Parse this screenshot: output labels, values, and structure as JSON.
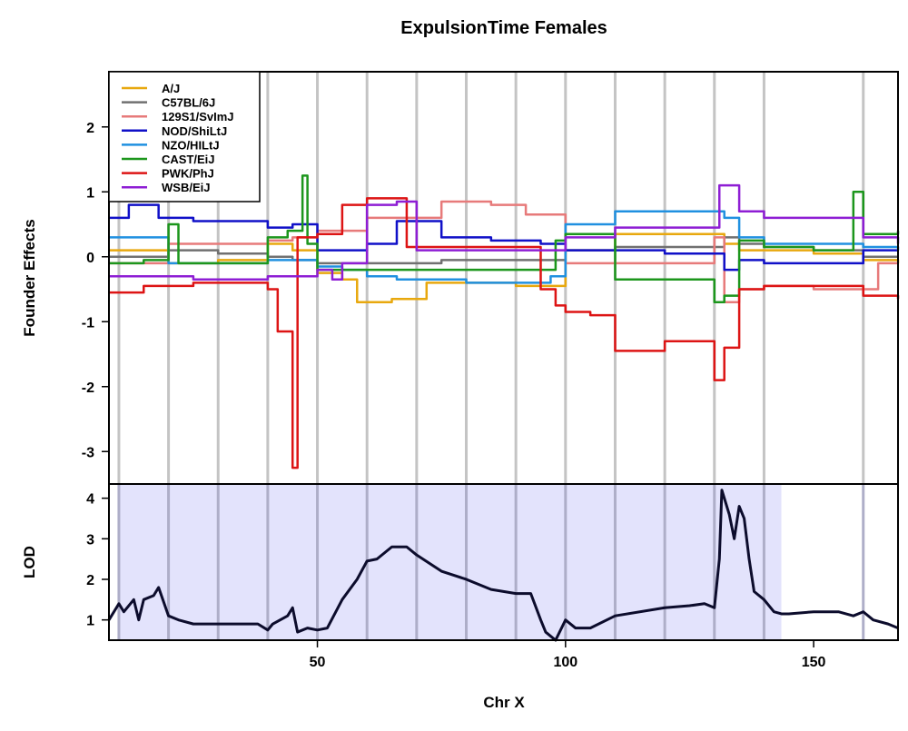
{
  "chart_data": {
    "type": "line",
    "title": "ExpulsionTime Females",
    "xlabel": "Chr X",
    "x_ticks": [
      50,
      100,
      150
    ],
    "xlim": [
      8,
      167
    ],
    "founder_panel": {
      "ylabel": "Founder Effects",
      "ylim": [
        -3.5,
        2.85
      ],
      "y_ticks": [
        -3,
        -2,
        -1,
        0,
        1,
        2
      ],
      "legend_position": "top-left",
      "series": [
        {
          "name": "A/J",
          "color": "#e8a80e",
          "x": [
            8,
            20,
            30,
            40,
            45,
            50,
            55,
            58,
            65,
            72,
            80,
            90,
            98,
            100,
            110,
            120,
            128,
            132,
            135,
            140,
            150,
            160,
            167
          ],
          "y": [
            0.1,
            -0.1,
            -0.05,
            0.2,
            0.1,
            -0.25,
            -0.35,
            -0.7,
            -0.65,
            -0.4,
            -0.4,
            -0.45,
            -0.45,
            0.1,
            0.35,
            0.35,
            0.35,
            0.2,
            0.1,
            0.1,
            0.05,
            -0.05,
            -0.1
          ]
        },
        {
          "name": "C57BL/6J",
          "color": "#707070",
          "x": [
            8,
            20,
            30,
            40,
            45,
            50,
            55,
            60,
            68,
            75,
            85,
            95,
            100,
            110,
            120,
            128,
            132,
            135,
            140,
            150,
            160,
            167
          ],
          "y": [
            0,
            0.1,
            0.05,
            0,
            -0.05,
            -0.1,
            -0.1,
            -0.1,
            -0.1,
            -0.05,
            -0.05,
            -0.05,
            0.1,
            0.15,
            0.15,
            0.15,
            0.3,
            0.2,
            0.15,
            0.1,
            0,
            0
          ]
        },
        {
          "name": "129S1/SvImJ",
          "color": "#e77a7a",
          "x": [
            8,
            20,
            30,
            40,
            45,
            50,
            55,
            60,
            66,
            75,
            85,
            92,
            100,
            110,
            120,
            128,
            130,
            132,
            135,
            140,
            150,
            160,
            163,
            167
          ],
          "y": [
            -0.1,
            0.2,
            0.2,
            0.25,
            0.3,
            0.4,
            0.4,
            0.6,
            0.6,
            0.85,
            0.8,
            0.65,
            -0.1,
            -0.1,
            -0.1,
            -0.1,
            0.3,
            -0.7,
            -0.5,
            -0.45,
            -0.5,
            -0.5,
            -0.1,
            -0.1
          ]
        },
        {
          "name": "NOD/ShiLtJ",
          "color": "#1010c8",
          "x": [
            8,
            12,
            18,
            25,
            35,
            40,
            45,
            50,
            55,
            60,
            66,
            75,
            85,
            95,
            100,
            110,
            120,
            128,
            132,
            135,
            140,
            150,
            160,
            167
          ],
          "y": [
            0.6,
            0.8,
            0.6,
            0.55,
            0.55,
            0.45,
            0.5,
            0.1,
            0.1,
            0.2,
            0.55,
            0.3,
            0.25,
            0.2,
            0.1,
            0.1,
            0.05,
            0.05,
            -0.2,
            -0.05,
            -0.1,
            -0.1,
            0.1,
            0.1
          ]
        },
        {
          "name": "NZO/HILtJ",
          "color": "#2090e0",
          "x": [
            8,
            20,
            30,
            40,
            45,
            50,
            55,
            60,
            66,
            72,
            80,
            90,
            97,
            100,
            110,
            120,
            128,
            132,
            135,
            140,
            150,
            160,
            167
          ],
          "y": [
            0.3,
            -0.1,
            -0.1,
            -0.05,
            -0.05,
            -0.15,
            -0.2,
            -0.3,
            -0.35,
            -0.35,
            -0.4,
            -0.4,
            -0.3,
            0.5,
            0.7,
            0.7,
            0.7,
            0.6,
            0.3,
            0.2,
            0.2,
            0.15,
            0.1
          ]
        },
        {
          "name": "CAST/EiJ",
          "color": "#1c961c",
          "x": [
            8,
            15,
            20,
            22,
            25,
            35,
            40,
            44,
            47,
            48,
            50,
            55,
            65,
            75,
            85,
            95,
            98,
            100,
            110,
            120,
            128,
            130,
            132,
            135,
            140,
            150,
            155,
            158,
            160,
            167
          ],
          "y": [
            -0.1,
            -0.05,
            0.5,
            -0.1,
            -0.1,
            -0.1,
            0.3,
            0.4,
            1.25,
            0.2,
            -0.2,
            -0.2,
            -0.2,
            -0.2,
            -0.2,
            -0.2,
            0.25,
            0.35,
            -0.35,
            -0.35,
            -0.35,
            -0.7,
            -0.6,
            0.25,
            0.15,
            0.1,
            0.1,
            1.0,
            0.35,
            0.4
          ]
        },
        {
          "name": "PWK/PhJ",
          "color": "#dd1414",
          "x": [
            8,
            15,
            25,
            35,
            40,
            42,
            44,
            45,
            46,
            50,
            55,
            60,
            65,
            68,
            72,
            80,
            90,
            95,
            98,
            100,
            105,
            110,
            120,
            128,
            130,
            132,
            135,
            140,
            150,
            160,
            167
          ],
          "y": [
            -0.55,
            -0.45,
            -0.4,
            -0.4,
            -0.5,
            -1.15,
            -1.15,
            -3.25,
            0.3,
            0.35,
            0.8,
            0.9,
            0.9,
            0.15,
            0.15,
            0.15,
            0.15,
            -0.5,
            -0.75,
            -0.85,
            -0.9,
            -1.45,
            -1.3,
            -1.3,
            -1.9,
            -1.4,
            -0.5,
            -0.45,
            -0.45,
            -0.6,
            -0.65
          ]
        },
        {
          "name": "WSB/EiJ",
          "color": "#8e1ed4",
          "x": [
            8,
            15,
            25,
            35,
            40,
            45,
            50,
            53,
            55,
            60,
            62,
            66,
            70,
            75,
            80,
            85,
            90,
            95,
            100,
            105,
            110,
            120,
            128,
            131,
            135,
            140,
            150,
            160,
            167
          ],
          "y": [
            -0.3,
            -0.3,
            -0.35,
            -0.35,
            -0.3,
            -0.3,
            -0.2,
            -0.35,
            -0.1,
            0.8,
            0.8,
            0.85,
            0.1,
            0.1,
            0.1,
            0.1,
            0.1,
            0.1,
            0.3,
            0.3,
            0.45,
            0.45,
            0.45,
            1.1,
            0.7,
            0.6,
            0.6,
            0.3,
            0.2
          ]
        }
      ]
    },
    "lod_panel": {
      "ylabel": "LOD",
      "ylim": [
        0.5,
        4.35
      ],
      "y_ticks": [
        1,
        2,
        3,
        4
      ],
      "highlight_interval": [
        10,
        143.5
      ],
      "x": [
        8,
        10,
        11,
        13,
        14,
        15,
        17,
        18,
        20,
        22,
        25,
        30,
        35,
        38,
        40,
        41,
        44,
        45,
        46,
        48,
        50,
        52,
        55,
        58,
        60,
        62,
        65,
        68,
        70,
        75,
        80,
        85,
        90,
        93,
        95,
        96,
        97,
        98,
        100,
        102,
        105,
        110,
        120,
        125,
        128,
        130,
        131,
        131.5,
        133,
        134,
        135,
        136,
        137,
        138,
        140,
        142,
        143.5,
        145,
        150,
        155,
        158,
        160,
        162,
        165,
        167
      ],
      "y": [
        1.0,
        1.4,
        1.2,
        1.5,
        1.0,
        1.5,
        1.6,
        1.8,
        1.1,
        1.0,
        0.9,
        0.9,
        0.9,
        0.9,
        0.75,
        0.9,
        1.1,
        1.3,
        0.7,
        0.8,
        0.75,
        0.8,
        1.5,
        2.0,
        2.45,
        2.5,
        2.8,
        2.8,
        2.6,
        2.2,
        2.0,
        1.75,
        1.65,
        1.65,
        1.0,
        0.7,
        0.6,
        0.5,
        1.0,
        0.8,
        0.8,
        1.1,
        1.3,
        1.35,
        1.4,
        1.3,
        2.5,
        4.2,
        3.6,
        3.0,
        3.8,
        3.5,
        2.5,
        1.7,
        1.5,
        1.2,
        1.15,
        1.15,
        1.2,
        1.2,
        1.1,
        1.2,
        1.0,
        0.9,
        0.8
      ]
    },
    "marker_lines": [
      10,
      20,
      30,
      40,
      50,
      60,
      70,
      80,
      90,
      100,
      110,
      120,
      130,
      140,
      160
    ]
  }
}
